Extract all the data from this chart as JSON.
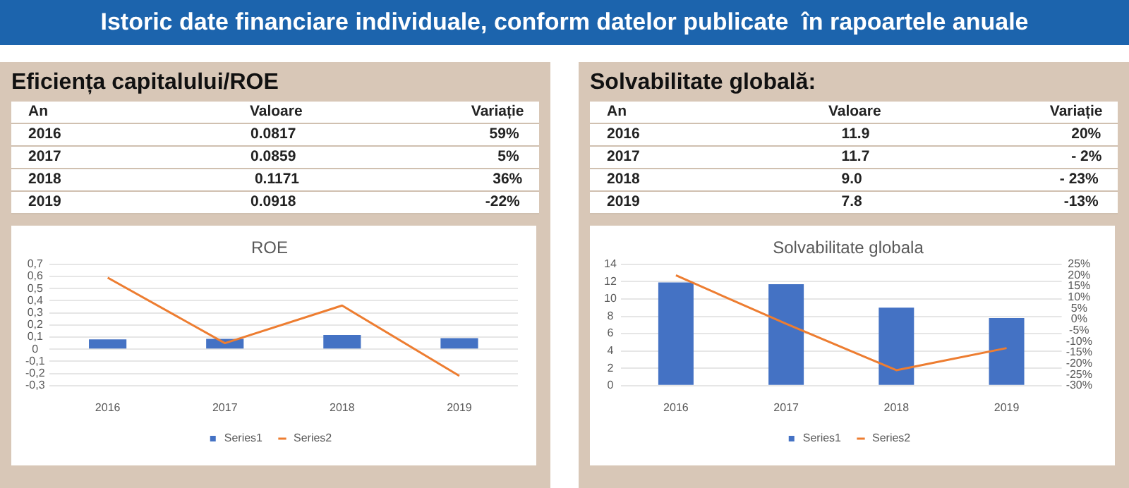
{
  "chart_data": [
    {
      "type": "other",
      "title": "Istoric date financiare individuale, conform datelor publicate  în rapoartele anuale"
    },
    {
      "type": "other",
      "title": "Eficiența capitalului/ROE",
      "annotations": [
        "An",
        "Valoare",
        "Variație",
        "2016",
        "0.0817",
        "59%",
        "2017",
        "0.0859",
        "5%",
        "2018",
        "0.1171",
        "36%",
        "2019",
        "0.0918",
        "-22%"
      ]
    },
    {
      "type": "bar",
      "title": "ROE",
      "categories": [
        "2016",
        "2017",
        "2018",
        "2019"
      ],
      "series": [
        {
          "name": "Series1",
          "color": "#4472c4",
          "values": [
            0.0817,
            0.0859,
            0.1171,
            0.0918
          ]
        },
        {
          "name": "Series2",
          "type": "line",
          "color": "#ed7d31",
          "values": [
            0.59,
            0.05,
            0.36,
            -0.22
          ]
        }
      ],
      "ylim": [
        -0.3,
        0.7
      ],
      "yticks": [
        {
          "value": -0.3,
          "label": "-0,3"
        },
        {
          "value": -0.2,
          "label": "-0,2"
        },
        {
          "value": -0.1,
          "label": "-0,1"
        },
        0,
        {
          "value": 0.1,
          "label": "0,1"
        },
        {
          "value": 0.2,
          "label": "0,2"
        },
        {
          "value": 0.3,
          "label": "0,3"
        },
        {
          "value": 0.4,
          "label": "0,4"
        },
        {
          "value": 0.5,
          "label": "0,5"
        },
        {
          "value": 0.6,
          "label": "0,6"
        },
        {
          "value": 0.7,
          "label": "0,7"
        }
      ],
      "grid": "y",
      "legend": "bottom",
      "marker": "none"
    },
    {
      "type": "other",
      "title": "Solvabilitate globală:",
      "annotations": [
        "An",
        "Valoare",
        "Variație",
        "2016",
        "11.9",
        "20%",
        "2017",
        "11.7",
        "- 2%",
        "2018",
        "9.0",
        "- 23%",
        "2019",
        "7.8",
        "-13%"
      ]
    },
    {
      "type": "bar",
      "title": "Solvabilitate globala",
      "categories": [
        "2016",
        "2017",
        "2018",
        "2019"
      ],
      "series": [
        {
          "name": "Series1",
          "color": "#4472c4",
          "values": [
            11.9,
            11.7,
            9.0,
            7.8
          ]
        },
        {
          "name": "Series2",
          "type": "line",
          "axis": "y2",
          "color": "#ed7d31",
          "values": [
            20,
            -2,
            -23,
            -13
          ]
        }
      ],
      "ylim": [
        0,
        14
      ],
      "yticks": [
        0,
        2,
        4,
        6,
        8,
        10,
        12,
        14
      ],
      "y2lim": [
        -30,
        25
      ],
      "y2ticks": [
        {
          "value": -30,
          "label": "-30%"
        },
        {
          "value": -25,
          "label": "-25%"
        },
        {
          "value": -20,
          "label": "-20%"
        },
        {
          "value": -15,
          "label": "-15%"
        },
        {
          "value": -10,
          "label": "-10%"
        },
        {
          "value": -5,
          "label": "-5%"
        },
        {
          "value": 0,
          "label": "0%"
        },
        {
          "value": 5,
          "label": "5%"
        },
        {
          "value": 10,
          "label": "10%"
        },
        {
          "value": 15,
          "label": "15%"
        },
        {
          "value": 20,
          "label": "20%"
        },
        {
          "value": 25,
          "label": "25%"
        }
      ],
      "grid": "y",
      "legend": "bottom",
      "marker": "none"
    }
  ]
}
